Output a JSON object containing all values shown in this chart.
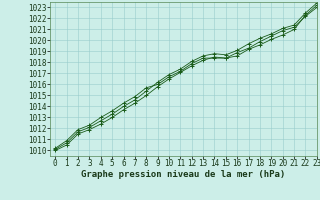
{
  "xlabel": "Graphe pression niveau de la mer (hPa)",
  "xlim": [
    -0.5,
    23
  ],
  "ylim": [
    1009.5,
    1023.5
  ],
  "xticks": [
    0,
    1,
    2,
    3,
    4,
    5,
    6,
    7,
    8,
    9,
    10,
    11,
    12,
    13,
    14,
    15,
    16,
    17,
    18,
    19,
    20,
    21,
    22,
    23
  ],
  "yticks": [
    1010,
    1011,
    1012,
    1013,
    1014,
    1015,
    1016,
    1017,
    1018,
    1019,
    1020,
    1021,
    1022,
    1023
  ],
  "bg_color": "#cceee8",
  "grid_color": "#99cccc",
  "line_color": "#1a5c1a",
  "line1": [
    1010.0,
    1010.5,
    1011.5,
    1011.9,
    1012.4,
    1013.0,
    1013.7,
    1014.3,
    1015.0,
    1015.8,
    1016.5,
    1017.1,
    1017.7,
    1018.2,
    1018.5,
    1018.4,
    1018.6,
    1019.2,
    1019.6,
    1020.1,
    1020.5,
    1021.0,
    1022.3,
    1023.2
  ],
  "line2": [
    1010.1,
    1010.7,
    1011.7,
    1012.1,
    1012.7,
    1013.3,
    1014.0,
    1014.6,
    1015.4,
    1016.2,
    1016.9,
    1017.4,
    1018.1,
    1018.6,
    1018.8,
    1018.7,
    1019.1,
    1019.7,
    1020.2,
    1020.6,
    1021.1,
    1021.4,
    1022.5,
    1023.4
  ],
  "line3": [
    1010.2,
    1010.9,
    1011.9,
    1012.3,
    1013.0,
    1013.6,
    1014.3,
    1014.9,
    1015.7,
    1016.0,
    1016.7,
    1017.2,
    1017.9,
    1018.4,
    1018.4,
    1018.4,
    1018.9,
    1019.3,
    1019.9,
    1020.4,
    1020.9,
    1021.2,
    1022.2,
    1023.0
  ],
  "tick_fontsize": 5.5,
  "label_fontsize": 6.5,
  "font_color": "#1a3a1a"
}
